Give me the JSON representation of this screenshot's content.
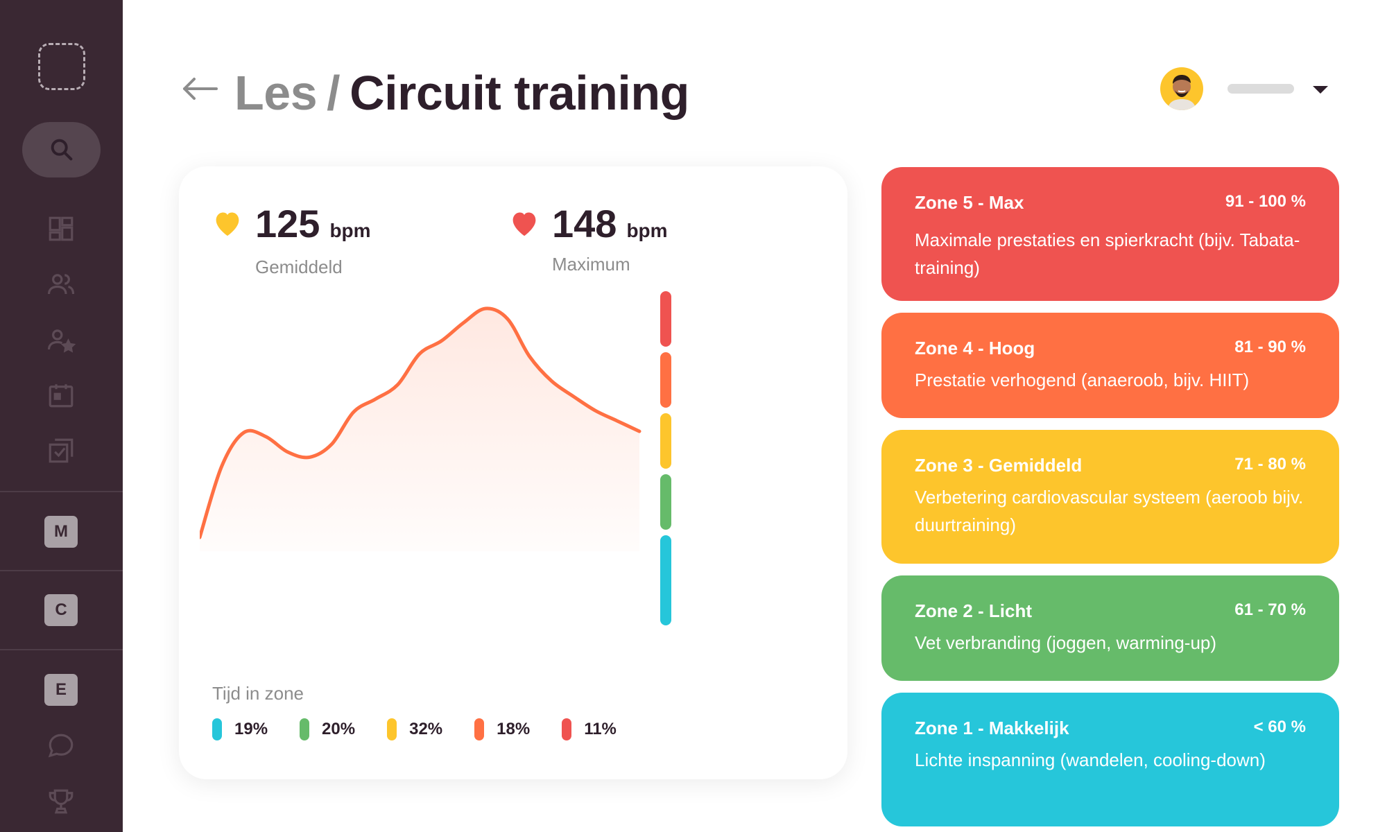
{
  "header": {
    "crumb": "Les",
    "separator": "/",
    "title": "Circuit training"
  },
  "sidebar": {
    "icons": [
      "search-icon",
      "dashboard-icon",
      "users-icon",
      "user-star-icon",
      "calendar-icon",
      "checklist-icon"
    ],
    "letters": [
      "M",
      "C",
      "E"
    ],
    "bottom_icons": [
      "chat-icon",
      "trophy-icon"
    ]
  },
  "stats": {
    "average": {
      "value": "125",
      "unit": "bpm",
      "label": "Gemiddeld",
      "color": "#fdc52c"
    },
    "maximum": {
      "value": "148",
      "unit": "bpm",
      "label": "Maximum",
      "color": "#ef5350"
    }
  },
  "time_in_zone": {
    "title": "Tijd in zone",
    "items": [
      {
        "value": "19%",
        "color": "#26c6da"
      },
      {
        "value": "20%",
        "color": "#66bb6a"
      },
      {
        "value": "32%",
        "color": "#fdc52c"
      },
      {
        "value": "18%",
        "color": "#ff7043"
      },
      {
        "value": "11%",
        "color": "#ef5350"
      }
    ]
  },
  "chart_data": {
    "type": "area",
    "x": [
      0,
      1,
      2,
      3,
      4,
      5,
      6,
      7,
      8,
      9,
      10,
      11,
      12,
      13,
      14,
      15,
      16,
      17,
      18,
      19,
      20
    ],
    "values": [
      0.0,
      0.55,
      0.81,
      0.78,
      0.66,
      0.62,
      0.72,
      0.97,
      1.07,
      1.18,
      1.42,
      1.52,
      1.66,
      1.77,
      1.69,
      1.4,
      1.21,
      1.09,
      0.98,
      0.9,
      0.82
    ],
    "line_color": "#ff7043",
    "zone_bar_colors": [
      "#ef5350",
      "#ff7043",
      "#fdc52c",
      "#66bb6a",
      "#26c6da"
    ]
  },
  "zones": [
    {
      "name": "Zone 5 - Max",
      "range": "91 - 100 %",
      "desc": "Maximale prestaties en spierkracht (bijv. Tabata-training)",
      "color": "#ef5350"
    },
    {
      "name": "Zone 4 - Hoog",
      "range": "81 - 90 %",
      "desc": "Prestatie verhogend (anaeroob, bijv. HIIT)",
      "color": "#ff7043"
    },
    {
      "name": "Zone 3 - Gemiddeld",
      "range": "71 - 80 %",
      "desc": "Verbetering cardiovascular systeem (aeroob bijv. duurtraining)",
      "color": "#fdc52c"
    },
    {
      "name": "Zone 2 - Licht",
      "range": "61 - 70 %",
      "desc": "Vet verbranding (joggen, warming-up)",
      "color": "#66bb6a"
    },
    {
      "name": "Zone 1 - Makkelijk",
      "range": "< 60 %",
      "desc": "Lichte inspanning (wandelen, cooling-down)",
      "color": "#26c6da"
    }
  ]
}
